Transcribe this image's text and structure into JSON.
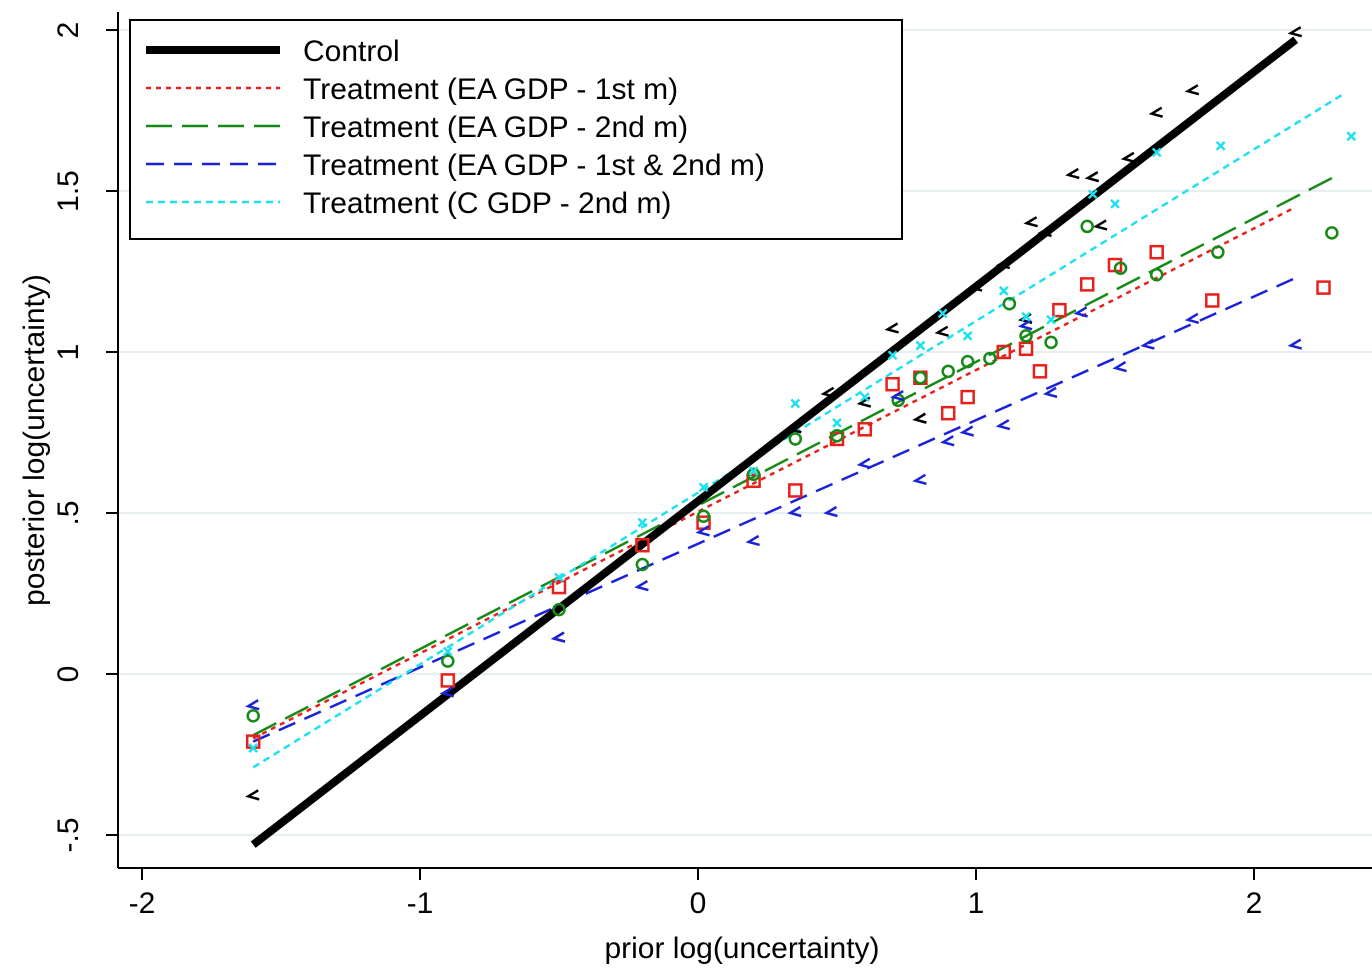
{
  "chart_data": {
    "type": "scatter",
    "xlabel": "prior log(uncertainty)",
    "ylabel": "posterior log(uncertainty)",
    "xlim": [
      -2.08,
      2.4
    ],
    "ylim": [
      -0.6,
      2.05
    ],
    "x_ticks": [
      {
        "value": -2,
        "label": "-2"
      },
      {
        "value": -1,
        "label": "-1"
      },
      {
        "value": 0,
        "label": "0"
      },
      {
        "value": 1,
        "label": "1"
      },
      {
        "value": 2,
        "label": "2"
      }
    ],
    "y_ticks": [
      {
        "value": -0.5,
        "label": "-.5"
      },
      {
        "value": 0,
        "label": "0"
      },
      {
        "value": 0.5,
        "label": ".5"
      },
      {
        "value": 1,
        "label": "1"
      },
      {
        "value": 1.5,
        "label": "1.5"
      },
      {
        "value": 2,
        "label": "2"
      }
    ],
    "grid": "horizontal",
    "legend_position": "top-left",
    "series": [
      {
        "name": "Control",
        "color": "#000000",
        "marker": "chevron-left",
        "line_style": "solid-thick",
        "fit": {
          "x": [
            -1.6,
            2.15
          ],
          "y": [
            -0.53,
            1.97
          ]
        },
        "points": [
          [
            -1.6,
            -0.38
          ],
          [
            -0.5,
            0.11
          ],
          [
            0.35,
            0.76
          ],
          [
            0.47,
            0.87
          ],
          [
            0.6,
            0.84
          ],
          [
            0.7,
            1.07
          ],
          [
            0.8,
            0.79
          ],
          [
            0.88,
            1.06
          ],
          [
            1.0,
            1.2
          ],
          [
            1.1,
            1.27
          ],
          [
            1.18,
            1.1
          ],
          [
            1.2,
            1.4
          ],
          [
            1.25,
            1.37
          ],
          [
            1.35,
            1.55
          ],
          [
            1.42,
            1.54
          ],
          [
            1.45,
            1.39
          ],
          [
            1.55,
            1.6
          ],
          [
            1.65,
            1.74
          ],
          [
            1.78,
            1.81
          ],
          [
            2.15,
            1.99
          ]
        ]
      },
      {
        "name": "Treatment (EA GDP - 1st m)",
        "color": "#e8201c",
        "marker": "square",
        "line_style": "dot",
        "fit": {
          "x": [
            -1.6,
            2.15
          ],
          "y": [
            -0.2,
            1.45
          ]
        },
        "points": [
          [
            -1.6,
            -0.21
          ],
          [
            -0.9,
            -0.02
          ],
          [
            -0.5,
            0.27
          ],
          [
            -0.2,
            0.4
          ],
          [
            0.02,
            0.47
          ],
          [
            0.2,
            0.6
          ],
          [
            0.35,
            0.57
          ],
          [
            0.5,
            0.73
          ],
          [
            0.6,
            0.76
          ],
          [
            0.7,
            0.9
          ],
          [
            0.8,
            0.92
          ],
          [
            0.9,
            0.81
          ],
          [
            0.97,
            0.86
          ],
          [
            1.1,
            1.0
          ],
          [
            1.18,
            1.01
          ],
          [
            1.23,
            0.94
          ],
          [
            1.3,
            1.13
          ],
          [
            1.4,
            1.21
          ],
          [
            1.5,
            1.27
          ],
          [
            1.65,
            1.31
          ],
          [
            1.85,
            1.16
          ],
          [
            2.25,
            1.2
          ]
        ]
      },
      {
        "name": "Treatment (EA GDP - 2nd m)",
        "color": "#168a16",
        "marker": "circle",
        "line_style": "long-dash",
        "fit": {
          "x": [
            -1.6,
            2.28
          ],
          "y": [
            -0.19,
            1.54
          ]
        },
        "points": [
          [
            -1.6,
            -0.13
          ],
          [
            -0.9,
            0.04
          ],
          [
            -0.5,
            0.2
          ],
          [
            -0.2,
            0.34
          ],
          [
            0.02,
            0.49
          ],
          [
            0.2,
            0.62
          ],
          [
            0.35,
            0.73
          ],
          [
            0.5,
            0.74
          ],
          [
            0.72,
            0.85
          ],
          [
            0.8,
            0.92
          ],
          [
            0.9,
            0.94
          ],
          [
            0.97,
            0.97
          ],
          [
            1.05,
            0.98
          ],
          [
            1.12,
            1.15
          ],
          [
            1.18,
            1.05
          ],
          [
            1.27,
            1.03
          ],
          [
            1.4,
            1.39
          ],
          [
            1.52,
            1.26
          ],
          [
            1.65,
            1.24
          ],
          [
            1.87,
            1.31
          ],
          [
            2.28,
            1.37
          ]
        ]
      },
      {
        "name": "Treatment (EA GDP - 1st & 2nd m)",
        "color": "#1a22d6",
        "marker": "chevron-left",
        "line_style": "dash",
        "fit": {
          "x": [
            -1.6,
            2.15
          ],
          "y": [
            -0.21,
            1.23
          ]
        },
        "points": [
          [
            -1.6,
            -0.1
          ],
          [
            -0.9,
            -0.06
          ],
          [
            -0.5,
            0.11
          ],
          [
            -0.2,
            0.27
          ],
          [
            0.02,
            0.44
          ],
          [
            0.2,
            0.41
          ],
          [
            0.35,
            0.5
          ],
          [
            0.48,
            0.5
          ],
          [
            0.6,
            0.65
          ],
          [
            0.72,
            0.86
          ],
          [
            0.8,
            0.6
          ],
          [
            0.9,
            0.72
          ],
          [
            0.97,
            0.75
          ],
          [
            1.1,
            0.77
          ],
          [
            1.18,
            1.08
          ],
          [
            1.27,
            0.87
          ],
          [
            1.38,
            1.12
          ],
          [
            1.52,
            0.95
          ],
          [
            1.62,
            1.02
          ],
          [
            1.78,
            1.1
          ],
          [
            2.15,
            1.02
          ]
        ]
      },
      {
        "name": "Treatment (C GDP - 2nd m)",
        "color": "#1ee0ee",
        "marker": "x",
        "line_style": "short-dash",
        "fit": {
          "x": [
            -1.6,
            2.32
          ],
          "y": [
            -0.29,
            1.8
          ]
        },
        "points": [
          [
            -1.6,
            -0.23
          ],
          [
            -0.9,
            0.07
          ],
          [
            -0.5,
            0.3
          ],
          [
            -0.2,
            0.47
          ],
          [
            0.02,
            0.58
          ],
          [
            0.2,
            0.63
          ],
          [
            0.35,
            0.84
          ],
          [
            0.5,
            0.78
          ],
          [
            0.6,
            0.86
          ],
          [
            0.7,
            0.99
          ],
          [
            0.8,
            1.02
          ],
          [
            0.88,
            1.12
          ],
          [
            0.97,
            1.05
          ],
          [
            1.1,
            1.19
          ],
          [
            1.18,
            1.11
          ],
          [
            1.27,
            1.1
          ],
          [
            1.42,
            1.49
          ],
          [
            1.5,
            1.46
          ],
          [
            1.65,
            1.62
          ],
          [
            1.88,
            1.64
          ],
          [
            2.35,
            1.67
          ]
        ]
      }
    ]
  }
}
